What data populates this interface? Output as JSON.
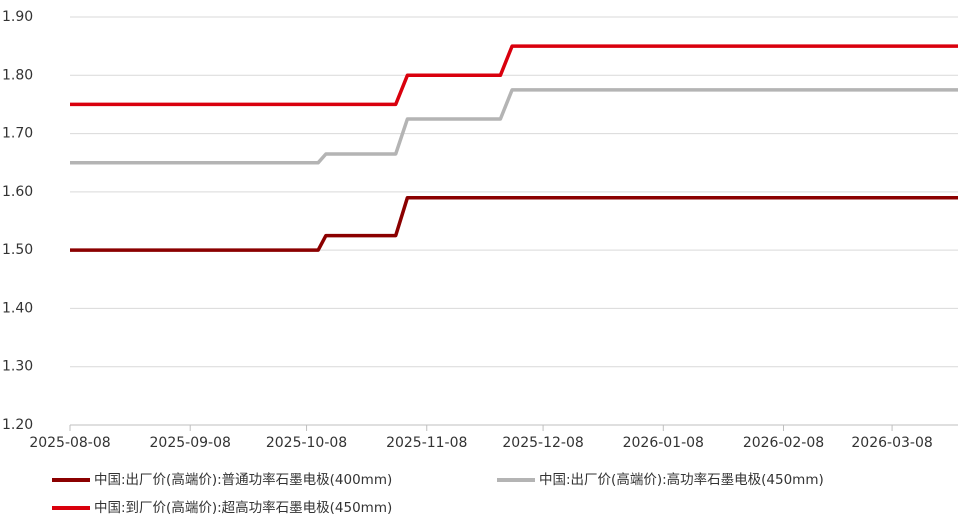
{
  "chart_data": {
    "type": "line",
    "xlim": [
      "2025-08-08",
      "2026-03-25"
    ],
    "xticks": [
      "2025-08-08",
      "2025-09-08",
      "2025-10-08",
      "2025-11-08",
      "2025-12-08",
      "2026-01-08",
      "2026-02-08",
      "2026-03-08"
    ],
    "ylim": [
      1.2,
      1.9
    ],
    "yticks": [
      {
        "value": 1.2,
        "label": "1.20"
      },
      {
        "value": 1.3,
        "label": "1.30"
      },
      {
        "value": 1.4,
        "label": "1.40"
      },
      {
        "value": 1.5,
        "label": "1.50"
      },
      {
        "value": 1.6,
        "label": "1.60"
      },
      {
        "value": 1.7,
        "label": "1.70"
      },
      {
        "value": 1.8,
        "label": "1.80"
      },
      {
        "value": 1.9,
        "label": "1.90"
      }
    ],
    "grid": true,
    "legend": "bottom",
    "series": [
      {
        "name": "中国:出厂价(高端价):普通功率石墨电极(400mm)",
        "color": "#8b0000",
        "x": [
          "2025-08-08",
          "2025-10-11",
          "2025-10-13",
          "2025-10-31",
          "2025-11-03",
          "2026-03-25"
        ],
        "values": [
          1.5,
          1.5,
          1.525,
          1.525,
          1.59,
          1.59
        ]
      },
      {
        "name": "中国:出厂价(高端价):高功率石墨电极(450mm)",
        "color": "#b4b4b4",
        "x": [
          "2025-08-08",
          "2025-10-11",
          "2025-10-13",
          "2025-10-31",
          "2025-11-03",
          "2025-11-27",
          "2025-11-30",
          "2026-03-25"
        ],
        "values": [
          1.65,
          1.65,
          1.665,
          1.665,
          1.725,
          1.725,
          1.775,
          1.775
        ]
      },
      {
        "name": "中国:到厂价(高端价):超高功率石墨电极(450mm)",
        "color": "#d9000d",
        "x": [
          "2025-08-08",
          "2025-10-31",
          "2025-11-03",
          "2025-11-27",
          "2025-11-30",
          "2026-03-25"
        ],
        "values": [
          1.75,
          1.75,
          1.8,
          1.8,
          1.85,
          1.85
        ]
      }
    ]
  }
}
